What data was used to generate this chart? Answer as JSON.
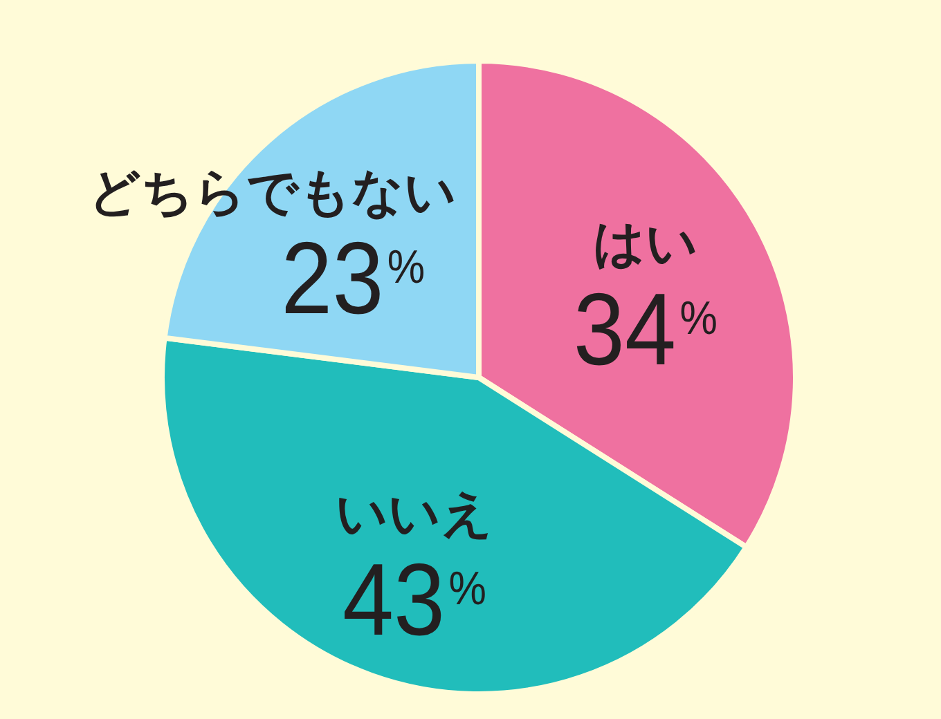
{
  "chart_data": {
    "type": "pie",
    "categories": [
      "はい",
      "いいえ",
      "どちらでもない"
    ],
    "values": [
      34,
      43,
      23
    ],
    "colors": [
      "#ef71a0",
      "#21bdbb",
      "#8fd7f4"
    ],
    "value_labels": [
      "34%",
      "43%",
      "23%"
    ],
    "legend": false
  }
}
